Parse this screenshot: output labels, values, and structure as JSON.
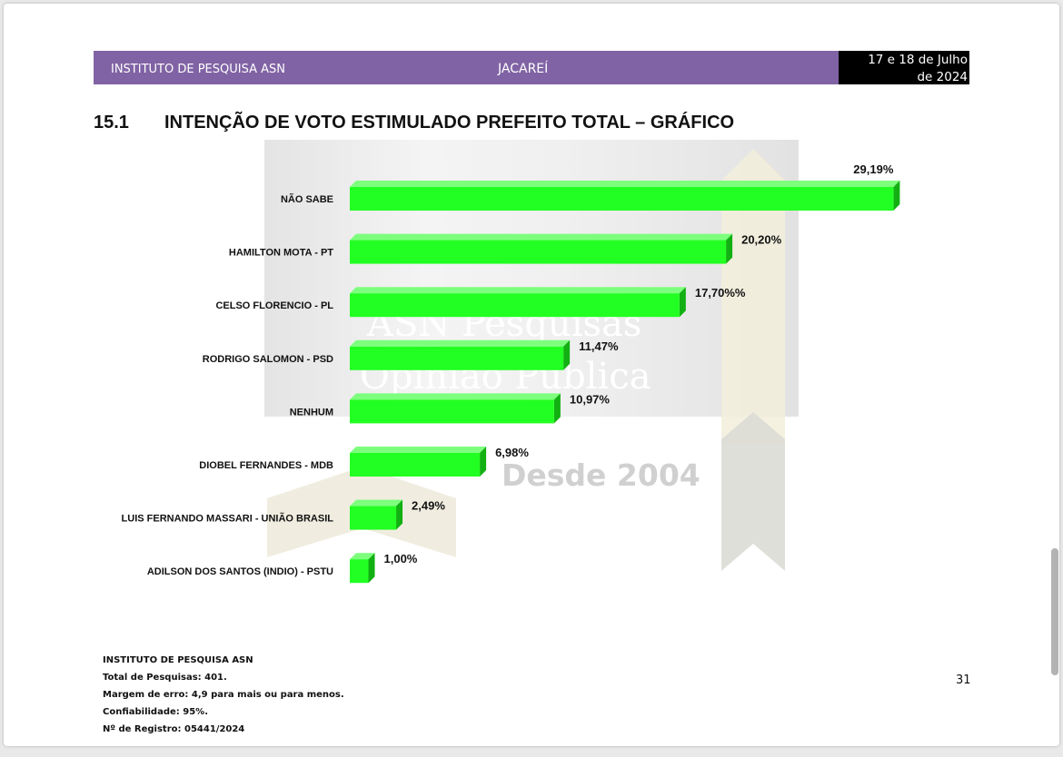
{
  "header": {
    "institute": "INSTITUTO DE PESQUISA ASN",
    "city": "JACAREÍ",
    "date_line1": "17 e 18 de Julho",
    "date_line2": "de 2024"
  },
  "section": {
    "number": "15.1",
    "title": "INTENÇÃO DE VOTO ESTIMULADO PREFEITO TOTAL – GRÁFICO"
  },
  "watermark": {
    "line1": "ASN Pesquisas",
    "line2": "Opinião Pública",
    "line3": "Desde 2004"
  },
  "chart_data": {
    "type": "bar",
    "orientation": "horizontal",
    "categories": [
      "NÃO SABE",
      "HAMILTON MOTA - PT",
      "CELSO FLORENCIO - PL",
      "RODRIGO SALOMON - PSD",
      "NENHUM",
      "DIOBEL FERNANDES - MDB",
      "LUIS FERNANDO MASSARI - UNIÃO BRASIL",
      "ADILSON DOS SANTOS (INDIO) - PSTU"
    ],
    "values": [
      29.19,
      20.2,
      17.7,
      11.47,
      10.97,
      6.98,
      2.49,
      1.0
    ],
    "value_labels": [
      "29,19%",
      "20,20%",
      "17,70%%",
      "11,47%",
      "10,97%",
      "6,98%",
      "2,49%",
      "1,00%"
    ],
    "xlim": [
      0,
      30
    ],
    "grid": false,
    "bar_color": "#22ff22"
  },
  "footer": {
    "institute": "INSTITUTO DE PESQUISA ASN",
    "total": "Total de Pesquisas: 401.",
    "margin": "Margem de erro: 4,9 para mais ou para menos.",
    "confidence": "Confiabilidade: 95%.",
    "registry": "Nº de Registro: 05441/2024"
  },
  "page_number": "31"
}
